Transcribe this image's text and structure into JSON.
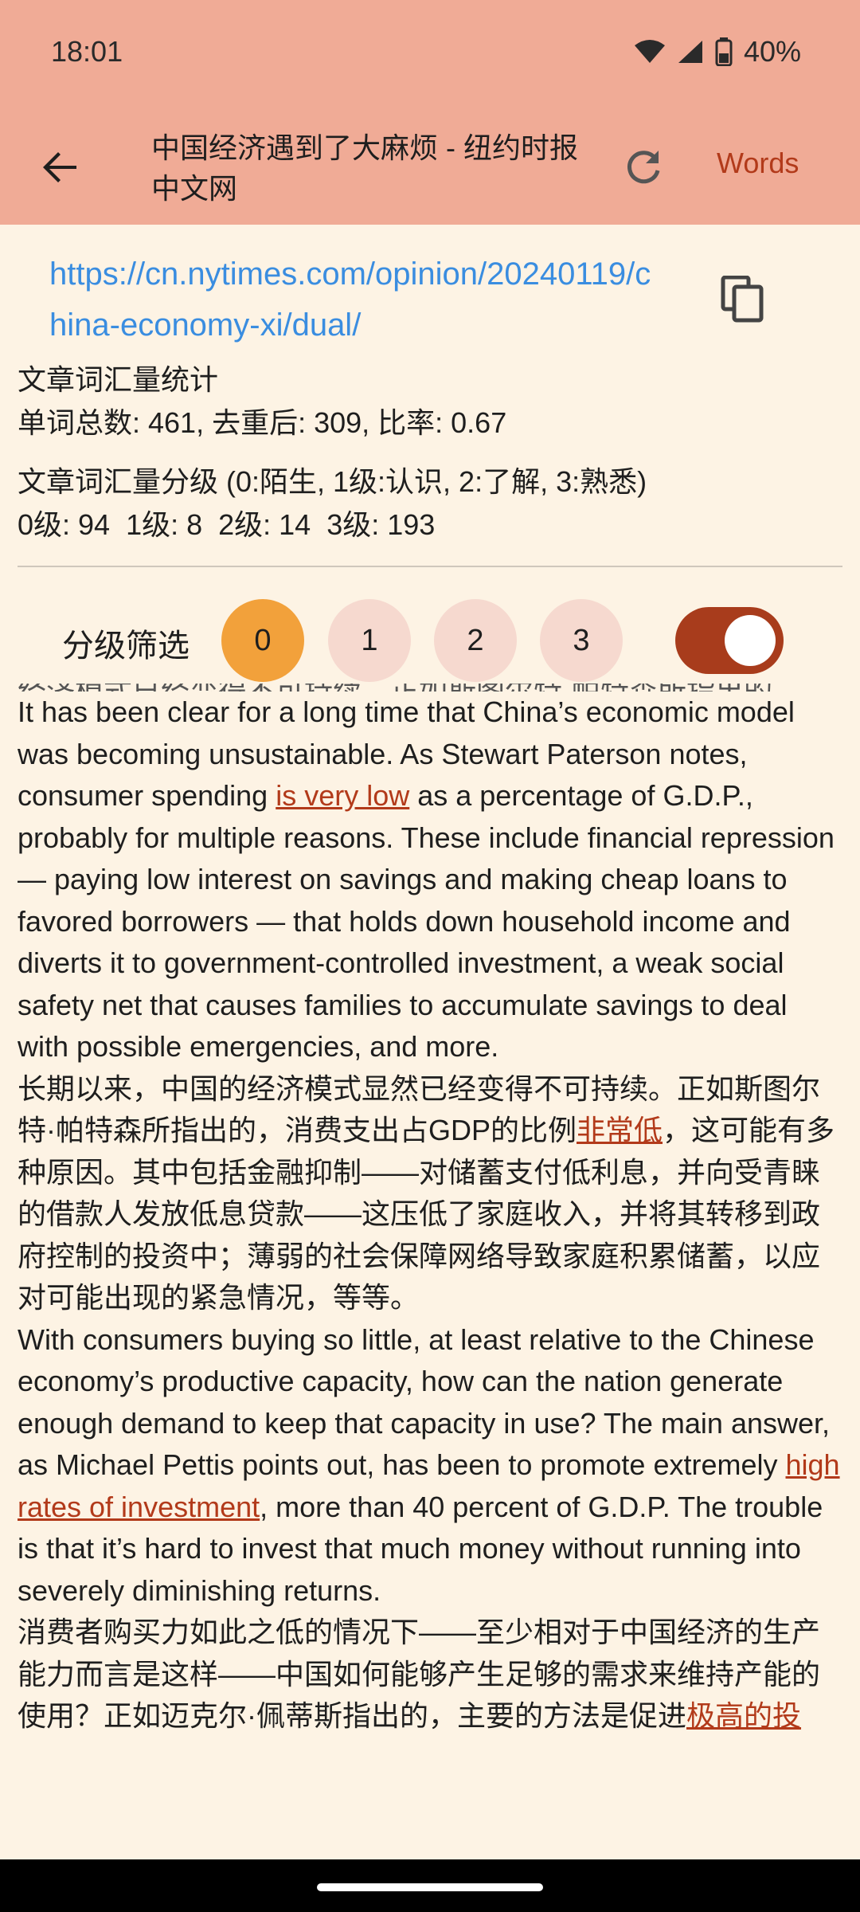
{
  "status": {
    "time": "18:01",
    "battery": "40%",
    "icons": [
      "wifi-icon",
      "signal-icon",
      "battery-icon"
    ]
  },
  "appbar": {
    "title": "中国经济遇到了大麻烦 - 纽约时报中文网",
    "words_label": "Words",
    "icons": [
      "back-arrow-icon",
      "refresh-icon"
    ]
  },
  "url": {
    "text": "https://cn.nytimes.com/opinion/20240119/china-economy-xi/dual/"
  },
  "stats": {
    "vocab_title": "文章词汇量统计",
    "vocab_counts": "单词总数: 461, 去重后: 309, 比率: 0.67",
    "level_title": "文章词汇量分级 (0:陌生, 1级:认识, 2:了解, 3:熟悉)",
    "level_counts": "0级: 94  1级: 8  2级: 14  3级: 193"
  },
  "filter": {
    "label": "分级筛选",
    "levels": [
      "0",
      "1",
      "2",
      "3"
    ],
    "selected": "0",
    "toggle_on": true
  },
  "article": {
    "cut_line": "经济模式已经变得不可持续。正如斯图尔特·帕特森所指出的",
    "p1": {
      "a": "It has been clear for a long time that China’s economic model was becoming unsustainable. As Stewart Paterson notes, consumer spending ",
      "link": "is very low",
      "b": " as a percentage of G.D.P., probably for multiple reasons. These include financial repression — paying low interest on savings and making cheap loans to favored borrowers — that holds down household income and diverts it to government-controlled investment, a weak social safety net that causes families to accumulate savings to deal with possible emergencies, and more."
    },
    "p2": {
      "a": "长期以来，中国的经济模式显然已经变得不可持续。正如斯图尔特·帕特森所指出的，消费支出占GDP的比例",
      "link": "非常低",
      "b": "，这可能有多种原因。其中包括金融抑制——对储蓄支付低利息，并向受青睐的借款人发放低息贷款——这压低了家庭收入，并将其转移到政府控制的投资中；薄弱的社会保障网络导致家庭积累储蓄，以应对可能出现的紧急情况，等等。"
    },
    "p3": {
      "a": "With consumers buying so little, at least relative to the Chinese economy’s productive capacity, how can the nation generate enough demand to keep that capacity in use? The main answer, as Michael Pettis points out, has been to promote extremely ",
      "link": "high rates of investment",
      "b": ", more than 40 percent of G.D.P. The trouble is that it’s hard to invest that much money without running into severely diminishing returns."
    },
    "p4": {
      "a": "消费者购买力如此之低的情况下——至少相对于中国经济的生产能力而言是这样——中国如何能够产生足够的需求来维持产能的使用？正如迈克尔·佩蒂斯指出的，主要的方法是促进",
      "link": "极高的投"
    }
  }
}
